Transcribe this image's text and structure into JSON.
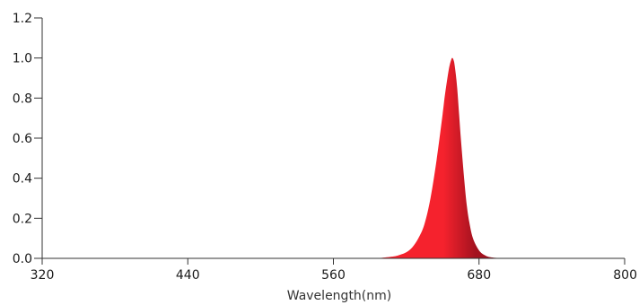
{
  "chart_data": {
    "type": "area",
    "title": "",
    "xlabel": "Wavelength(nm)",
    "ylabel": "",
    "xlim": [
      320,
      800
    ],
    "ylim": [
      0,
      1.2
    ],
    "x_ticks": [
      "320",
      "440",
      "560",
      "680",
      "800"
    ],
    "y_ticks": [
      "0.0",
      "0.2",
      "0.4",
      "0.6",
      "0.8",
      "1.0",
      "1.2"
    ],
    "grid": false,
    "legend": "none",
    "colors": {
      "fill_light": "#f5222d",
      "fill_dark": "#a3121f",
      "axis": "#333333"
    },
    "series": [
      {
        "x": [
          590,
          600,
          610,
          615,
          620,
          625,
          630,
          635,
          640,
          645,
          650,
          652,
          655,
          657,
          658,
          659,
          660,
          662,
          665,
          668,
          670,
          672,
          675,
          680,
          685,
          690,
          700,
          710
        ],
        "y": [
          0.0,
          0.003,
          0.01,
          0.018,
          0.03,
          0.055,
          0.1,
          0.17,
          0.3,
          0.49,
          0.72,
          0.82,
          0.94,
          0.99,
          1.0,
          0.99,
          0.96,
          0.85,
          0.6,
          0.38,
          0.26,
          0.18,
          0.1,
          0.04,
          0.015,
          0.005,
          0.001,
          0.0
        ]
      }
    ]
  }
}
